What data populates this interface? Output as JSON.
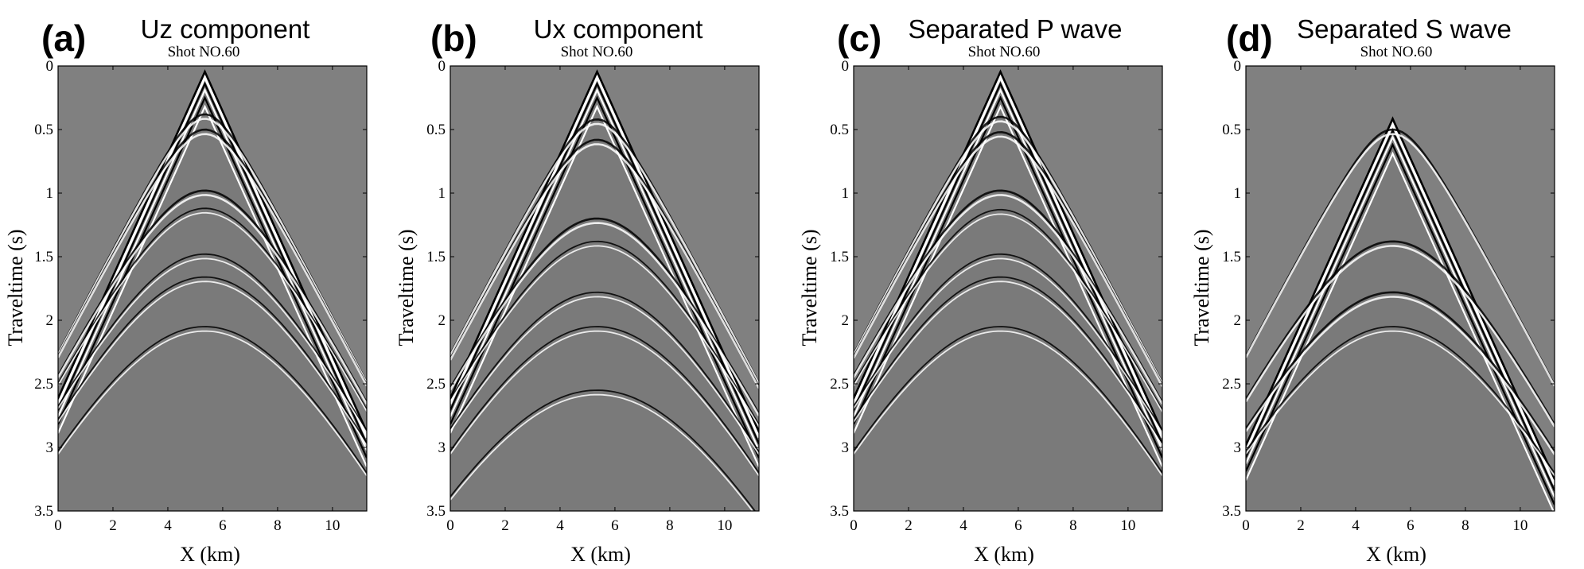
{
  "chart_data": [
    {
      "type": "heatmap",
      "panel_label": "(a)",
      "title": "Uz component",
      "subtitle": "Shot NO.60",
      "xlabel": "X (km)",
      "ylabel": "Traveltime (s)",
      "xlim": [
        0,
        11.25
      ],
      "ylim": [
        0,
        3.5
      ],
      "x_ticks": [
        "0",
        "2",
        "4",
        "6",
        "8",
        "10"
      ],
      "y_ticks": [
        "0",
        "0.5",
        "1",
        "1.5",
        "2",
        "2.5",
        "3",
        "3.5"
      ],
      "y_axis_inverted": true,
      "colormap": "grayscale",
      "source_x_km": 5.35,
      "direct_wave_t0_s": 0.05,
      "reflection_t0_s": [
        0.38,
        0.5,
        0.98,
        1.12,
        1.48,
        1.66,
        2.05
      ]
    },
    {
      "type": "heatmap",
      "panel_label": "(b)",
      "title": "Ux component",
      "subtitle": "Shot NO.60",
      "xlabel": "X (km)",
      "ylabel": "Traveltime (s)",
      "xlim": [
        0,
        11.25
      ],
      "ylim": [
        0,
        3.5
      ],
      "x_ticks": [
        "0",
        "2",
        "4",
        "6",
        "8",
        "10"
      ],
      "y_ticks": [
        "0",
        "0.5",
        "1",
        "1.5",
        "2",
        "2.5",
        "3",
        "3.5"
      ],
      "y_axis_inverted": true,
      "colormap": "grayscale",
      "source_x_km": 5.35,
      "direct_wave_t0_s": 0.05,
      "reflection_t0_s": [
        0.42,
        0.58,
        1.2,
        1.38,
        1.78,
        2.05,
        2.55
      ]
    },
    {
      "type": "heatmap",
      "panel_label": "(c)",
      "title": "Separated P wave",
      "subtitle": "Shot NO.60",
      "xlabel": "X (km)",
      "ylabel": "Traveltime (s)",
      "xlim": [
        0,
        11.25
      ],
      "ylim": [
        0,
        3.5
      ],
      "x_ticks": [
        "0",
        "2",
        "4",
        "6",
        "8",
        "10"
      ],
      "y_ticks": [
        "0",
        "0.5",
        "1",
        "1.5",
        "2",
        "2.5",
        "3",
        "3.5"
      ],
      "y_axis_inverted": true,
      "colormap": "grayscale",
      "source_x_km": 5.35,
      "direct_wave_t0_s": 0.05,
      "reflection_t0_s": [
        0.4,
        0.52,
        0.98,
        1.13,
        1.48,
        1.66,
        2.05
      ]
    },
    {
      "type": "heatmap",
      "panel_label": "(d)",
      "title": "Separated S wave",
      "subtitle": "Shot NO.60",
      "xlabel": "X (km)",
      "ylabel": "Traveltime (s)",
      "xlim": [
        0,
        11.25
      ],
      "ylim": [
        0,
        3.5
      ],
      "x_ticks": [
        "0",
        "2",
        "4",
        "6",
        "8",
        "10"
      ],
      "y_ticks": [
        "0",
        "0.5",
        "1",
        "1.5",
        "2",
        "2.5",
        "3",
        "3.5"
      ],
      "y_axis_inverted": true,
      "colormap": "grayscale",
      "source_x_km": 5.35,
      "direct_wave_t0_s": 0.42,
      "reflection_t0_s": [
        0.5,
        1.38,
        1.78,
        2.05
      ]
    }
  ],
  "colors": {
    "background": "#808080",
    "trough": "#000000",
    "peak": "#ffffff",
    "axis": "#000000"
  }
}
